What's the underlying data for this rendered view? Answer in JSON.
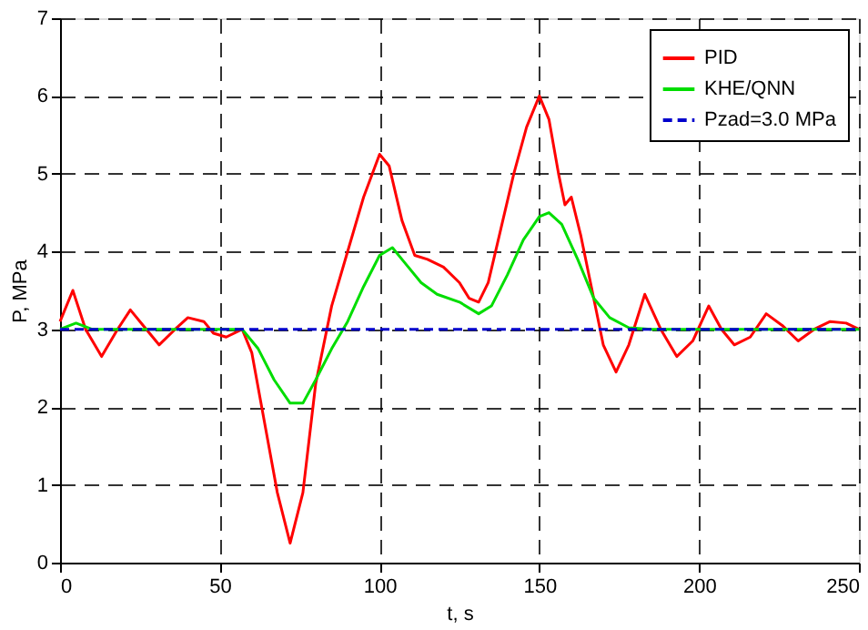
{
  "chart_data": {
    "type": "line",
    "xlabel": "t, s",
    "ylabel": "P, MPa",
    "xlim": [
      0,
      250
    ],
    "xticks": [
      0,
      50,
      100,
      150,
      200,
      250
    ],
    "ylim": [
      0,
      7
    ],
    "yticks": [
      0,
      1,
      2,
      3,
      4,
      5,
      6,
      7
    ],
    "grid": true,
    "legend": "top right",
    "marker": "none",
    "series": [
      {
        "name": "PID",
        "color": "#ff0000",
        "line_style": "solid",
        "x": [
          0,
          4,
          8,
          13,
          18,
          22,
          26,
          31,
          36,
          40,
          45,
          48,
          52,
          57,
          60,
          64,
          68,
          72,
          76,
          80,
          85,
          90,
          95,
          100,
          103,
          107,
          111,
          115,
          120,
          125,
          128,
          131,
          134,
          138,
          142,
          146,
          150,
          153,
          156,
          158,
          160,
          163,
          167,
          170,
          174,
          178,
          183,
          188,
          193,
          198,
          203,
          207,
          211,
          216,
          221,
          226,
          231,
          236,
          241,
          246,
          250
        ],
        "values": [
          3.1,
          3.5,
          3.0,
          2.65,
          3.0,
          3.25,
          3.05,
          2.8,
          3.0,
          3.15,
          3.1,
          2.95,
          2.9,
          3.0,
          2.7,
          1.8,
          0.9,
          0.25,
          0.9,
          2.3,
          3.3,
          4.0,
          4.7,
          5.25,
          5.1,
          4.4,
          3.95,
          3.9,
          3.8,
          3.6,
          3.4,
          3.35,
          3.6,
          4.3,
          5.0,
          5.6,
          6.0,
          5.7,
          5.0,
          4.6,
          4.7,
          4.2,
          3.4,
          2.8,
          2.45,
          2.8,
          3.45,
          3.0,
          2.65,
          2.85,
          3.3,
          3.0,
          2.8,
          2.9,
          3.2,
          3.05,
          2.85,
          3.0,
          3.1,
          3.08,
          3.0
        ]
      },
      {
        "name": "KHE/QNN",
        "color": "#00dd00",
        "line_style": "solid",
        "x": [
          0,
          5,
          10,
          20,
          30,
          50,
          57,
          62,
          67,
          72,
          76,
          80,
          85,
          90,
          95,
          100,
          104,
          108,
          113,
          118,
          125,
          131,
          135,
          140,
          145,
          150,
          153,
          157,
          162,
          167,
          172,
          178,
          185,
          250
        ],
        "values": [
          3.0,
          3.08,
          3.0,
          3.0,
          3.0,
          3.0,
          3.0,
          2.75,
          2.35,
          2.05,
          2.05,
          2.35,
          2.75,
          3.1,
          3.55,
          3.95,
          4.05,
          3.85,
          3.6,
          3.45,
          3.35,
          3.2,
          3.3,
          3.7,
          4.15,
          4.45,
          4.5,
          4.35,
          3.9,
          3.4,
          3.15,
          3.02,
          3.0,
          3.0
        ]
      },
      {
        "name": "Pzad=3.0 MPa",
        "color": "#0000cc",
        "line_style": "dashed",
        "x": [
          0,
          250
        ],
        "values": [
          3.0,
          3.0
        ]
      }
    ]
  }
}
